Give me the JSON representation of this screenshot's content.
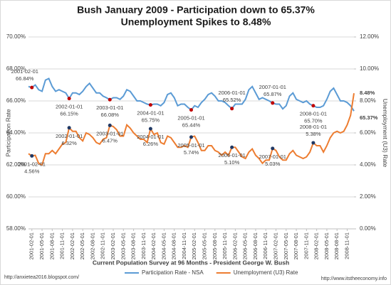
{
  "chart_data": {
    "type": "line",
    "title": "Bush January 2009 - Participation down to 65.37%",
    "subtitle": "Unemployment Spikes to 8.48%",
    "x_label": "Current Population Survey at 96 Months - President George W. Bush",
    "y_label": "Participation Rate",
    "y2_label": "Unemployment (U3) Rate",
    "sources": [
      "http://anxietea2016.blogspot.com/",
      "http://www.itstheeconomy.info"
    ],
    "grid": true,
    "legend": "bottom",
    "categories": [
      null,
      "2001-02-01",
      null,
      null,
      "2001-05-01",
      null,
      null,
      "2001-08-01",
      null,
      null,
      "2001-11-01",
      null,
      null,
      "2002-02-01",
      null,
      null,
      "2002-05-01",
      null,
      null,
      "2002-08-01",
      null,
      null,
      "2002-11-01",
      null,
      null,
      "2003-02-01",
      null,
      null,
      "2003-05-01",
      null,
      null,
      "2003-08-01",
      null,
      null,
      "2003-11-01",
      null,
      null,
      "2004-02-01",
      null,
      null,
      "2004-05-01",
      null,
      null,
      "2004-08-01",
      null,
      null,
      "2004-11-01",
      null,
      null,
      "2005-02-01",
      null,
      null,
      "2005-05-01",
      null,
      null,
      "2005-08-01",
      null,
      null,
      "2005-11-01",
      null,
      null,
      "2006-02-01",
      null,
      null,
      "2006-05-01",
      null,
      null,
      "2006-08-01",
      null,
      null,
      "2006-11-01",
      null,
      null,
      "2007-02-01",
      null,
      null,
      "2007-05-01",
      null,
      null,
      "2007-08-01",
      null,
      null,
      "2007-11-01",
      null,
      null,
      "2008-02-01",
      null,
      null,
      "2008-05-01",
      null,
      null,
      "2008-08-01",
      null,
      null,
      "2008-11-01",
      null,
      null
    ],
    "ylim": [
      58,
      70
    ],
    "yticks": [
      {
        "value": 58,
        "label": "58.00%"
      },
      {
        "value": 60,
        "label": "60.00%"
      },
      {
        "value": 62,
        "label": "62.00%"
      },
      {
        "value": 64,
        "label": "64.00%"
      },
      {
        "value": 66,
        "label": "66.00%"
      },
      {
        "value": 68,
        "label": "68.00%"
      },
      {
        "value": 70,
        "label": "70.00%"
      }
    ],
    "y2lim": [
      0,
      12
    ],
    "y2ticks": [
      {
        "value": 0,
        "label": "0.00%"
      },
      {
        "value": 2,
        "label": "2.00%"
      },
      {
        "value": 4,
        "label": "4.00%"
      },
      {
        "value": 6,
        "label": "6.00%"
      },
      {
        "value": 8,
        "label": "8.00%"
      },
      {
        "value": 10,
        "label": "10.00%"
      },
      {
        "value": 12,
        "label": "12.00%"
      }
    ],
    "series": [
      {
        "name": "Participation Rate - NSA",
        "color": "#5b9bd5",
        "marker_color": "#c00000",
        "label_color": "#1f3864",
        "values": [
          66.9,
          66.84,
          67.0,
          66.7,
          66.6,
          67.3,
          67.4,
          66.9,
          66.6,
          66.7,
          66.6,
          66.5,
          66.15,
          66.5,
          66.5,
          66.4,
          66.6,
          66.9,
          67.1,
          66.8,
          66.5,
          66.5,
          66.3,
          66.2,
          66.08,
          66.2,
          66.2,
          66.1,
          66.3,
          66.7,
          66.6,
          66.3,
          66.0,
          66.0,
          65.9,
          65.8,
          65.75,
          65.8,
          65.8,
          65.7,
          65.9,
          66.4,
          66.5,
          66.2,
          65.7,
          65.8,
          65.8,
          65.6,
          65.44,
          65.7,
          65.6,
          65.9,
          66.1,
          66.4,
          66.5,
          66.3,
          66.0,
          66.0,
          65.9,
          65.7,
          65.52,
          65.8,
          65.8,
          65.8,
          66.1,
          66.7,
          66.9,
          66.5,
          66.1,
          66.2,
          66.1,
          66.0,
          65.87,
          65.8,
          65.8,
          65.5,
          65.7,
          66.3,
          66.5,
          66.1,
          66.0,
          65.9,
          66.0,
          65.8,
          65.7,
          65.6,
          65.6,
          65.7,
          66.1,
          66.6,
          66.8,
          66.4,
          66.0,
          66.0,
          65.9,
          65.7,
          65.37
        ],
        "value_labels": [
          null,
          "66.84%",
          null,
          null,
          null,
          null,
          null,
          null,
          null,
          null,
          null,
          null,
          "66.15%",
          null,
          null,
          null,
          null,
          null,
          null,
          null,
          null,
          null,
          null,
          null,
          "66.08%",
          null,
          null,
          null,
          null,
          null,
          null,
          null,
          null,
          null,
          null,
          null,
          "65.75%",
          null,
          null,
          null,
          null,
          null,
          null,
          null,
          null,
          null,
          null,
          null,
          "65.44%",
          null,
          null,
          null,
          null,
          null,
          null,
          null,
          null,
          null,
          null,
          null,
          "65.52%",
          null,
          null,
          null,
          null,
          null,
          null,
          null,
          null,
          null,
          null,
          null,
          "65.87%",
          null,
          null,
          null,
          null,
          null,
          null,
          null,
          null,
          null,
          null,
          null,
          "65.70%",
          null,
          null,
          null,
          null,
          null,
          null,
          null,
          null,
          null,
          null,
          null,
          "65.37%"
        ],
        "value_label_dates": [
          null,
          "2001-02-01",
          null,
          null,
          null,
          null,
          null,
          null,
          null,
          null,
          null,
          null,
          "2002-01-01",
          null,
          null,
          null,
          null,
          null,
          null,
          null,
          null,
          null,
          null,
          null,
          "2003-01-01",
          null,
          null,
          null,
          null,
          null,
          null,
          null,
          null,
          null,
          null,
          null,
          "2004-01-01",
          null,
          null,
          null,
          null,
          null,
          null,
          null,
          null,
          null,
          null,
          null,
          "2005-01-01",
          null,
          null,
          null,
          null,
          null,
          null,
          null,
          null,
          null,
          null,
          null,
          "2006-01-01",
          null,
          null,
          null,
          null,
          null,
          null,
          null,
          null,
          null,
          null,
          null,
          "2007-01-01",
          null,
          null,
          null,
          null,
          null,
          null,
          null,
          null,
          null,
          null,
          null,
          "2008-01-01",
          null,
          null,
          null,
          null,
          null,
          null,
          null,
          null,
          null,
          null,
          null,
          null
        ]
      },
      {
        "name": "Unemployment (U3) Rate",
        "color": "#ed7d31",
        "marker_color": "#1f3864",
        "label_color": "#c00000",
        "axis": "y2",
        "values": [
          4.7,
          4.56,
          4.6,
          4.1,
          4.0,
          4.7,
          4.7,
          4.9,
          4.7,
          5.0,
          5.3,
          5.4,
          6.32,
          6.1,
          6.1,
          5.7,
          5.5,
          6.0,
          5.9,
          5.7,
          5.4,
          5.3,
          5.6,
          5.7,
          6.47,
          6.4,
          6.2,
          5.8,
          5.8,
          6.5,
          6.3,
          6.0,
          5.8,
          5.6,
          5.6,
          5.4,
          6.26,
          5.9,
          6.0,
          5.4,
          5.3,
          5.8,
          5.7,
          5.4,
          5.1,
          5.1,
          5.2,
          5.1,
          5.74,
          5.8,
          5.4,
          4.9,
          4.9,
          5.2,
          5.2,
          4.9,
          4.8,
          4.6,
          4.8,
          4.6,
          5.1,
          5.1,
          4.8,
          4.5,
          4.4,
          4.8,
          5.0,
          4.6,
          4.4,
          4.1,
          4.3,
          4.3,
          5.03,
          4.9,
          4.5,
          4.3,
          4.3,
          4.7,
          4.9,
          4.6,
          4.5,
          4.4,
          4.5,
          4.8,
          5.38,
          5.2,
          5.2,
          4.8,
          5.2,
          5.7,
          6.0,
          6.1,
          6.0,
          6.1,
          6.5,
          7.1,
          8.48
        ],
        "value_labels": [
          null,
          "4.56%",
          null,
          null,
          null,
          null,
          null,
          null,
          null,
          null,
          null,
          null,
          "6.32%",
          null,
          null,
          null,
          null,
          null,
          null,
          null,
          null,
          null,
          null,
          null,
          "6.47%",
          null,
          null,
          null,
          null,
          null,
          null,
          null,
          null,
          null,
          null,
          null,
          "6.26%",
          null,
          null,
          null,
          null,
          null,
          null,
          null,
          null,
          null,
          null,
          null,
          "5.74%",
          null,
          null,
          null,
          null,
          null,
          null,
          null,
          null,
          null,
          null,
          null,
          "5.10%",
          null,
          null,
          null,
          null,
          null,
          null,
          null,
          null,
          null,
          null,
          null,
          "5.03%",
          null,
          null,
          null,
          null,
          null,
          null,
          null,
          null,
          null,
          null,
          null,
          "5.38%",
          null,
          null,
          null,
          null,
          null,
          null,
          null,
          null,
          null,
          null,
          null,
          "8.48%"
        ],
        "value_label_dates": [
          null,
          "2001-02-01",
          null,
          null,
          null,
          null,
          null,
          null,
          null,
          null,
          null,
          null,
          "2002-01-01",
          null,
          null,
          null,
          null,
          null,
          null,
          null,
          null,
          null,
          null,
          null,
          "2003-01-01",
          null,
          null,
          null,
          null,
          null,
          null,
          null,
          null,
          null,
          null,
          null,
          "2004-01-01",
          null,
          null,
          null,
          null,
          null,
          null,
          null,
          null,
          null,
          null,
          null,
          "2005-01-01",
          null,
          null,
          null,
          null,
          null,
          null,
          null,
          null,
          null,
          null,
          null,
          "2006-01-01",
          null,
          null,
          null,
          null,
          null,
          null,
          null,
          null,
          null,
          null,
          null,
          "2007-01-01",
          null,
          null,
          null,
          null,
          null,
          null,
          null,
          null,
          null,
          null,
          null,
          "2008-01-01",
          null,
          null,
          null,
          null,
          null,
          null,
          null,
          null,
          null,
          null,
          null,
          null
        ]
      }
    ]
  }
}
